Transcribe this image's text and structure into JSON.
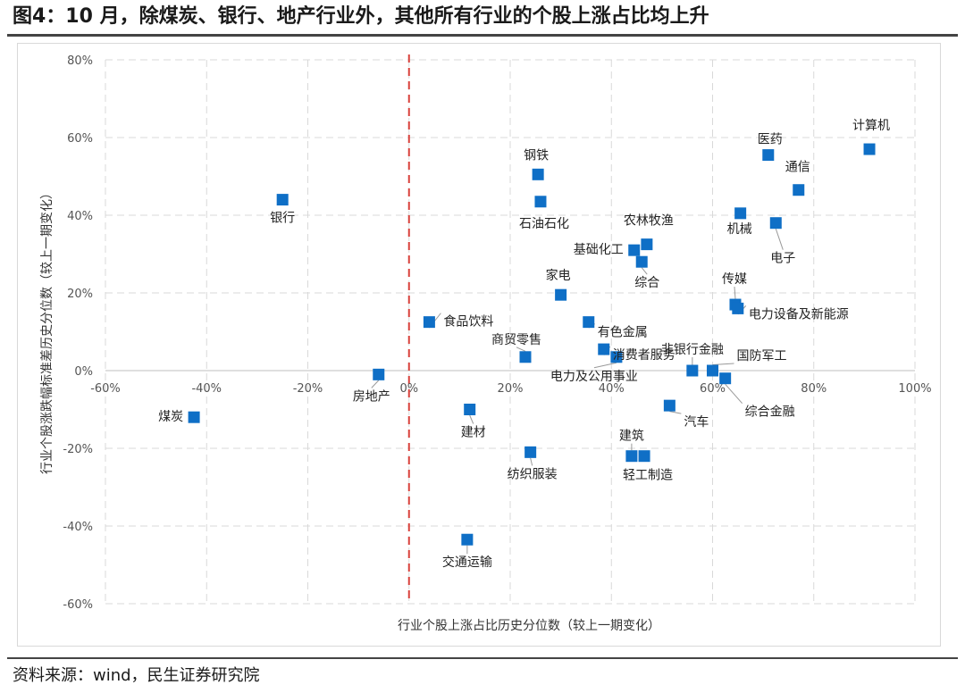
{
  "header": {
    "title": "图4：10 月，除煤炭、银行、地产行业外，其他所有行业的个股上涨占比均上升"
  },
  "footer": {
    "source": "资料来源：wind，民生证券研究院"
  },
  "colors": {
    "point": "#0f6fc6",
    "zero_line": "#d9413b",
    "grid": "#d9d9d9",
    "axis_text": "#555555"
  },
  "chart_data": {
    "type": "scatter",
    "title": "",
    "xlabel": "行业个股上涨占比历史分位数（较上一期变化）",
    "ylabel": "行业个股涨跌幅标准差历史分位数（较上一期变化）",
    "xlim": [
      -60,
      100
    ],
    "ylim": [
      -60,
      80
    ],
    "x_ticks": [
      -60,
      -40,
      -20,
      0,
      20,
      40,
      60,
      80,
      100
    ],
    "y_ticks": [
      -60,
      -40,
      -20,
      0,
      20,
      40,
      60,
      80
    ],
    "x_tick_labels": [
      "-60%",
      "-40%",
      "-20%",
      "0%",
      "20%",
      "40%",
      "60%",
      "80%",
      "100%"
    ],
    "y_tick_labels": [
      "-60%",
      "-40%",
      "-20%",
      "0%",
      "20%",
      "40%",
      "60%",
      "80%"
    ],
    "vertical_reference_line": 0,
    "grid": true,
    "points": [
      {
        "label": "计算机",
        "x": 91,
        "y": 57
      },
      {
        "label": "医药",
        "x": 71,
        "y": 55.5
      },
      {
        "label": "通信",
        "x": 77,
        "y": 46.5
      },
      {
        "label": "机械",
        "x": 65.5,
        "y": 40.5
      },
      {
        "label": "电子",
        "x": 72.5,
        "y": 38
      },
      {
        "label": "钢铁",
        "x": 25.5,
        "y": 50.5
      },
      {
        "label": "石油石化",
        "x": 26,
        "y": 43.5
      },
      {
        "label": "银行",
        "x": -25,
        "y": 44
      },
      {
        "label": "农林牧渔",
        "x": 47,
        "y": 32.5
      },
      {
        "label": "基础化工",
        "x": 44.5,
        "y": 31
      },
      {
        "label": "综合",
        "x": 46,
        "y": 28
      },
      {
        "label": "家电",
        "x": 30,
        "y": 19.5
      },
      {
        "label": "传媒",
        "x": 64.5,
        "y": 17
      },
      {
        "label": "电力设备及新能源",
        "x": 65,
        "y": 16
      },
      {
        "label": "有色金属",
        "x": 35.5,
        "y": 12.5
      },
      {
        "label": "消费者服务",
        "x": 38.5,
        "y": 5.5
      },
      {
        "label": "食品饮料",
        "x": 4,
        "y": 12.5
      },
      {
        "label": "商贸零售",
        "x": 23,
        "y": 3.5
      },
      {
        "label": "电力及公用事业",
        "x": 41,
        "y": 3.5
      },
      {
        "label": "非银行金融",
        "x": 56,
        "y": 0
      },
      {
        "label": "国防军工",
        "x": 60,
        "y": 0
      },
      {
        "label": "综合金融",
        "x": 62.5,
        "y": -2
      },
      {
        "label": "房地产",
        "x": -6,
        "y": -1
      },
      {
        "label": "汽车",
        "x": 51.5,
        "y": -9
      },
      {
        "label": "建材",
        "x": 12,
        "y": -10
      },
      {
        "label": "煤炭",
        "x": -42.5,
        "y": -12
      },
      {
        "label": "建筑",
        "x": 44,
        "y": -22
      },
      {
        "label": "轻工制造",
        "x": 46.5,
        "y": -22
      },
      {
        "label": "纺织服装",
        "x": 24,
        "y": -21
      },
      {
        "label": "交通运输",
        "x": 11.5,
        "y": -43.5
      }
    ]
  }
}
